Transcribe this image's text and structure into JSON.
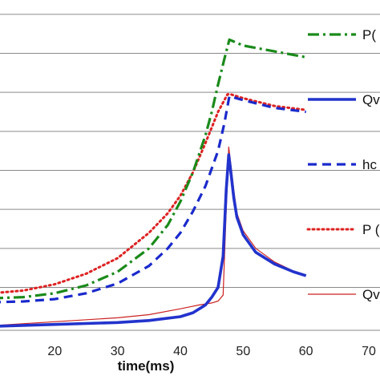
{
  "chart_data": {
    "type": "line",
    "xlabel": "time(ms)",
    "ylabel": "",
    "xlim": [
      10,
      70
    ],
    "ylim": [
      -0.1,
      8.1
    ],
    "x_ticks": [
      20,
      30,
      40,
      50,
      60,
      70
    ],
    "x_tick_labels": [
      "20",
      "30",
      "40",
      "50",
      "60",
      "70"
    ],
    "y_gridlines": [
      1,
      2,
      3,
      4,
      5,
      6,
      7,
      8
    ],
    "grid": true,
    "legend_placement": "right",
    "series": [
      {
        "name": "P(",
        "color": "#1a8a1a",
        "style": "dashdot",
        "points": [
          [
            10,
            0.72
          ],
          [
            15,
            0.75
          ],
          [
            20,
            0.85
          ],
          [
            25,
            1.05
          ],
          [
            30,
            1.4
          ],
          [
            35,
            2.0
          ],
          [
            38,
            2.6
          ],
          [
            40,
            3.2
          ],
          [
            42,
            3.95
          ],
          [
            44,
            4.9
          ],
          [
            45,
            5.5
          ],
          [
            46,
            6.2
          ],
          [
            47,
            6.85
          ],
          [
            47.8,
            7.35
          ],
          [
            50,
            7.2
          ],
          [
            55,
            7.05
          ],
          [
            60,
            6.9
          ]
        ]
      },
      {
        "name": "Qv",
        "color": "#2233cc",
        "style": "solid",
        "points": [
          [
            10,
            0.0
          ],
          [
            20,
            0.05
          ],
          [
            30,
            0.1
          ],
          [
            35,
            0.15
          ],
          [
            40,
            0.25
          ],
          [
            42,
            0.35
          ],
          [
            44,
            0.55
          ],
          [
            45,
            0.75
          ],
          [
            46,
            1.0
          ],
          [
            46.8,
            1.8
          ],
          [
            47.3,
            3.5
          ],
          [
            47.7,
            4.4
          ],
          [
            48,
            4.0
          ],
          [
            48.5,
            3.3
          ],
          [
            49,
            2.8
          ],
          [
            50,
            2.35
          ],
          [
            52,
            1.9
          ],
          [
            55,
            1.6
          ],
          [
            58,
            1.4
          ],
          [
            60,
            1.3
          ]
        ]
      },
      {
        "name": "hc",
        "color": "#1a2acc",
        "style": "dashed",
        "points": [
          [
            10,
            0.62
          ],
          [
            15,
            0.64
          ],
          [
            20,
            0.7
          ],
          [
            25,
            0.85
          ],
          [
            30,
            1.1
          ],
          [
            35,
            1.55
          ],
          [
            38,
            2.0
          ],
          [
            40,
            2.4
          ],
          [
            42,
            2.95
          ],
          [
            44,
            3.6
          ],
          [
            46,
            4.5
          ],
          [
            47,
            5.2
          ],
          [
            47.8,
            5.9
          ],
          [
            50,
            5.8
          ],
          [
            55,
            5.6
          ],
          [
            60,
            5.5
          ]
        ]
      },
      {
        "name": "P (",
        "color": "#dd2222",
        "style": "dotted",
        "points": [
          [
            10,
            0.85
          ],
          [
            15,
            0.92
          ],
          [
            20,
            1.08
          ],
          [
            25,
            1.35
          ],
          [
            30,
            1.75
          ],
          [
            35,
            2.4
          ],
          [
            38,
            2.9
          ],
          [
            40,
            3.35
          ],
          [
            42,
            3.95
          ],
          [
            44,
            4.7
          ],
          [
            46,
            5.5
          ],
          [
            47.5,
            5.95
          ],
          [
            48,
            5.95
          ],
          [
            50,
            5.85
          ],
          [
            55,
            5.65
          ],
          [
            60,
            5.55
          ]
        ]
      },
      {
        "name": "Qv",
        "color": "#cc2222",
        "style": "thin",
        "points": [
          [
            10,
            0.02
          ],
          [
            20,
            0.12
          ],
          [
            30,
            0.22
          ],
          [
            35,
            0.3
          ],
          [
            40,
            0.45
          ],
          [
            43,
            0.55
          ],
          [
            45,
            0.6
          ],
          [
            46,
            0.65
          ],
          [
            46.8,
            0.8
          ],
          [
            47.3,
            3.0
          ],
          [
            47.7,
            4.6
          ],
          [
            48,
            4.2
          ],
          [
            48.5,
            3.5
          ],
          [
            49,
            2.9
          ],
          [
            50,
            2.45
          ],
          [
            52,
            2.0
          ],
          [
            55,
            1.65
          ],
          [
            58,
            1.42
          ],
          [
            60,
            1.32
          ]
        ]
      }
    ]
  }
}
